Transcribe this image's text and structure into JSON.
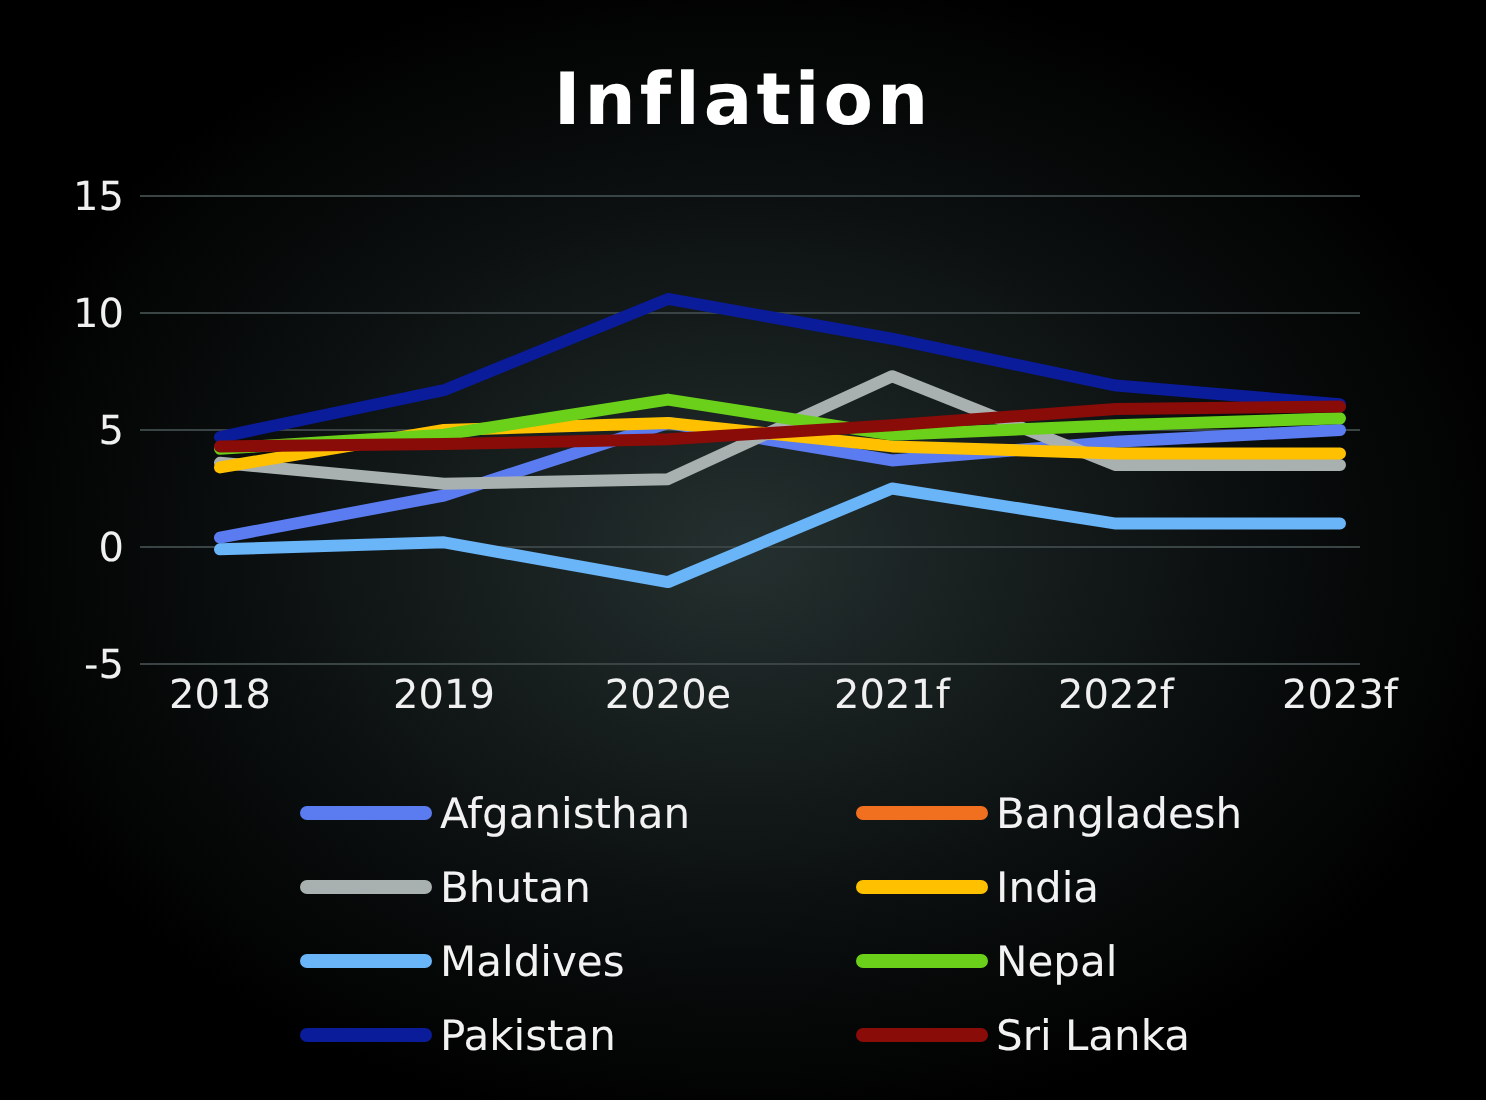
{
  "chart_data": {
    "type": "line",
    "title": "Inflation",
    "categories": [
      "2018",
      "2019",
      "2020e",
      "2021f",
      "2022f",
      "2023f"
    ],
    "series": [
      {
        "name": "Afganisthan",
        "color": "#5b7cf0",
        "values": [
          0.4,
          2.2,
          5.3,
          3.7,
          4.5,
          5.0
        ]
      },
      {
        "name": "Bangladesh",
        "color": "#f07020",
        "values": [
          null,
          null,
          null,
          null,
          null,
          null
        ]
      },
      {
        "name": "Bhutan",
        "color": "#a8b0b0",
        "values": [
          3.6,
          2.7,
          2.9,
          7.3,
          3.5,
          3.5
        ]
      },
      {
        "name": "India",
        "color": "#ffc000",
        "values": [
          3.4,
          5.0,
          5.3,
          4.3,
          4.0,
          4.0
        ]
      },
      {
        "name": "Maldives",
        "color": "#6ab4f8",
        "values": [
          -0.1,
          0.2,
          -1.5,
          2.5,
          1.0,
          1.0
        ]
      },
      {
        "name": "Nepal",
        "color": "#6ad01a",
        "values": [
          4.2,
          4.8,
          6.3,
          4.8,
          5.2,
          5.5
        ]
      },
      {
        "name": "Pakistan",
        "color": "#0a1c9a",
        "values": [
          4.7,
          6.7,
          10.6,
          8.9,
          6.9,
          6.1
        ]
      },
      {
        "name": "Sri Lanka",
        "color": "#8a0c08",
        "values": [
          4.3,
          4.4,
          4.6,
          5.2,
          5.9,
          6.0
        ]
      }
    ],
    "ylim": [
      -5,
      15
    ],
    "yticks": [
      -5,
      0,
      5,
      10,
      15
    ],
    "grid": "y",
    "legend": "bottom",
    "marker": "none",
    "line_style": "solid"
  }
}
